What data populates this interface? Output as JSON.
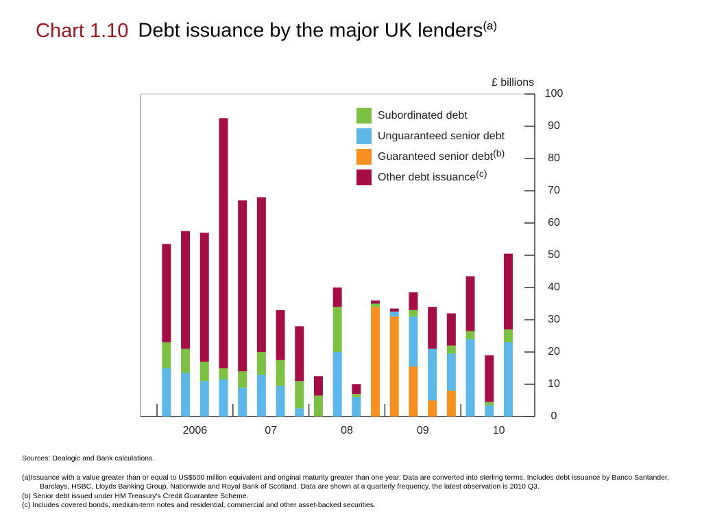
{
  "chart_data": {
    "type": "stacked_bar",
    "title_label": "Chart 1.10",
    "title": "Debt issuance by the major UK lenders",
    "title_note": "(a)",
    "y_axis_label": "£ billions",
    "categories": [
      null,
      "2006",
      null,
      null,
      null,
      "07",
      null,
      null,
      null,
      "08",
      null,
      null,
      null,
      "09",
      null,
      null,
      null,
      "10",
      null
    ],
    "series": [
      {
        "name": "Subordinated debt",
        "color": "#7dc142",
        "values": [
          8,
          7.5,
          6,
          3.5,
          5,
          7,
          8,
          8.5,
          6.5,
          14,
          1,
          1,
          0,
          2,
          0,
          2.5,
          2.5,
          1,
          4
        ]
      },
      {
        "name": "Unguaranteed senior debt",
        "color": "#5bb8e8",
        "values": [
          15,
          13.5,
          11,
          11.5,
          9,
          13,
          9.5,
          2.5,
          0,
          20,
          6,
          0,
          1.5,
          15.5,
          16,
          11.5,
          24,
          3.5,
          23
        ]
      },
      {
        "name": "Guaranteed senior debt",
        "note": "(b)",
        "color": "#f7901e",
        "values": [
          0,
          0,
          0,
          0,
          0,
          0,
          0,
          0,
          0,
          0,
          0,
          34,
          31,
          15.5,
          5,
          8,
          0,
          0,
          0
        ]
      },
      {
        "name": "Other debt issuance",
        "note": "(c)",
        "color": "#a50d45",
        "values": [
          30.5,
          36.5,
          40,
          77.5,
          53,
          48,
          15.5,
          17,
          6,
          6,
          3,
          1,
          1,
          5.5,
          13,
          10,
          17,
          14.5,
          23.5
        ]
      }
    ],
    "ylim": [
      0,
      100
    ],
    "yticks": [
      0,
      10,
      20,
      30,
      40,
      50,
      60,
      70,
      80,
      90,
      100
    ],
    "sources": "Sources:  Dealogic and Bank calculations.",
    "notes": [
      "(a)Issuance with a value greater than or equal to US$500 million equivalent and original maturity greater than one year.  Data are converted into sterling terms.  Includes debt issuance by Banco Santander, Barclays, HSBC, Lloyds Banking Group, Nationwide and Royal Bank of Scotland.  Data are shown at a quarterly frequency, the latest observation is 2010 Q3.",
      "(b)   Senior debt issued under HM Treasury's Credit Guarantee Scheme.",
      "(c)   Includes covered bonds, medium-term notes and residential, commercial and other asset-backed securities."
    ]
  }
}
